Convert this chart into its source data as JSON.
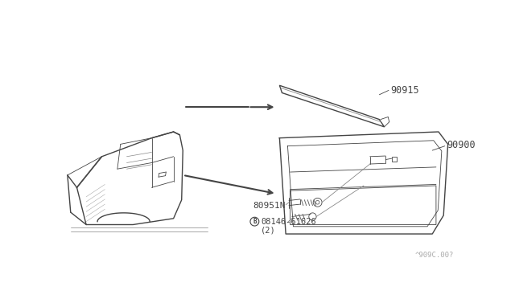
{
  "bg_color": "#ffffff",
  "line_color": "#444444",
  "text_color": "#444444",
  "part_90915": "90915",
  "part_90900": "90900",
  "part_80951N": "80951N",
  "part_screw": "08146-61626",
  "part_screw_qty": "(2)",
  "watermark": "^909C.00?",
  "circle_B": "B",
  "figsize": [
    6.4,
    3.72
  ],
  "dpi": 100
}
